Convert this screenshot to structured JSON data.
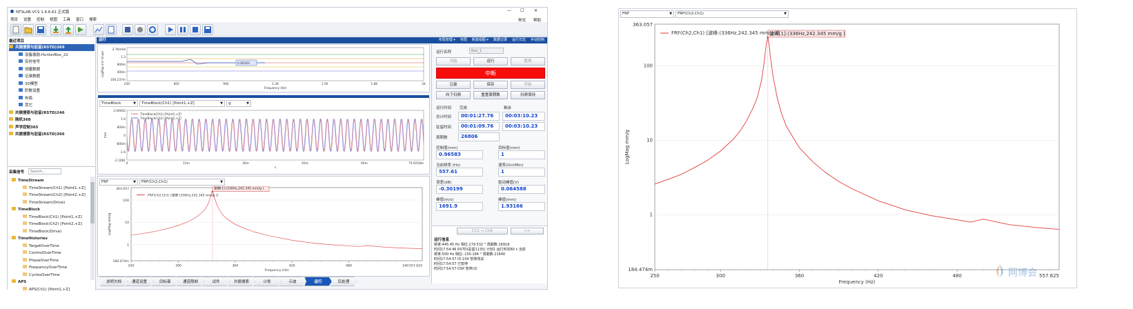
{
  "app": {
    "title": "NTSLAB.VCS 1.6.6.61 正式版",
    "menu": [
      "项目",
      "设置",
      "控制",
      "视图",
      "工具",
      "窗口",
      "搜索"
    ],
    "menu_right": [
      "样式",
      "帮助"
    ],
    "window_controls": [
      "—",
      "☐",
      "✕"
    ]
  },
  "toolbar_icons": [
    "new-file-icon",
    "open-folder-icon",
    "save-icon",
    "import-icon",
    "export-icon",
    "record-icon",
    "chart-icon",
    "document-icon",
    "stop-icon",
    "shape-icon",
    "settings-icon",
    "play-icon",
    "pause-icon",
    "stop-square-icon",
    "save-run-icon"
  ],
  "project_tree": {
    "header": "最近项目",
    "items": [
      {
        "label": "共振搜索与驻留(RSTD)369",
        "level": 0,
        "selected": true
      },
      {
        "label": "设备激励:HunterBox_22",
        "level": 1
      },
      {
        "label": "实时信号",
        "level": 1
      },
      {
        "label": "测量数据",
        "level": 1
      },
      {
        "label": "记录数据",
        "level": 1
      },
      {
        "label": "3D模型",
        "level": 1
      },
      {
        "label": "阶数设置",
        "level": 1
      },
      {
        "label": "布局",
        "level": 1
      },
      {
        "label": "其它",
        "level": 1
      },
      {
        "label": "共振搜索与驻留(RSTD)246",
        "level": 0
      },
      {
        "label": "随机368",
        "level": 0
      },
      {
        "label": "声学控制365",
        "level": 0
      },
      {
        "label": "共振搜索与驻留(RSTD)366",
        "level": 0
      }
    ]
  },
  "signal_tree": {
    "header": "采集信号",
    "search_placeholder": "Search...",
    "items": [
      {
        "label": "TimeStream",
        "level": 0,
        "group": true
      },
      {
        "label": "TimeStream(Ch1) [Point1,+Z]",
        "level": 1
      },
      {
        "label": "TimeStream(Ch2) [Point2,+Z]",
        "level": 1
      },
      {
        "label": "TimeStream(Drive)",
        "level": 1
      },
      {
        "label": "TimeBlock",
        "level": 0,
        "group": true
      },
      {
        "label": "TimeBlock(Ch1) [Point1,+Z]",
        "level": 1
      },
      {
        "label": "TimeBlock(Ch2) [Point2,+Z]",
        "level": 1
      },
      {
        "label": "TimeBlock(Drive)",
        "level": 1
      },
      {
        "label": "TimeHistories",
        "level": 0,
        "group": true
      },
      {
        "label": "TargetOverTime",
        "level": 1
      },
      {
        "label": "ControlOverTime",
        "level": 1
      },
      {
        "label": "PhaseOverTime",
        "level": 1
      },
      {
        "label": "FrequencyOverTime",
        "level": 1
      },
      {
        "label": "CyclesOverTime",
        "level": 1
      },
      {
        "label": "APS",
        "level": 0,
        "group": true
      },
      {
        "label": "APS(Ch1) [Point1,+Z]",
        "level": 1
      }
    ]
  },
  "run_panel": {
    "header": "运行",
    "header_menu": [
      "布局管理 ▾",
      "布局",
      "新建视图 ▾",
      "数据记录",
      "运行日志",
      "手动控制"
    ],
    "top_chart": {
      "ylabel": "LogMag mm (0-pe)",
      "yticks": [
        "2.7KmHz",
        "1.3",
        "800m",
        "400m",
        "100.237m"
      ],
      "xticks": [
        "250",
        "600",
        "900",
        "1.2K",
        "1.5K",
        "1.8K",
        "2K"
      ],
      "xlabel": "Frequency (Hz)",
      "marker": "0.96583"
    },
    "time_chart": {
      "select1": "TimeBlock",
      "select2": "TimeBlock(Ch1) [Point1,+Z]",
      "select3": "g",
      "legend": [
        "TimeBlock(Ch1) [Point1,+Z]",
        "TimeBlock(Ch2) [Point2,+Z]"
      ],
      "ylabel": "mm",
      "yticks": [
        "2.09402",
        "1.6",
        "800m",
        "0",
        "-800m",
        "-1.6",
        "-2.1081"
      ],
      "xticks": [
        "0",
        "15m",
        "30m",
        "45m",
        "60m",
        "79.9218m"
      ],
      "xlabel": "s"
    },
    "frf_small": {
      "select1": "FRF",
      "select2": "FRF(Ch2,Ch1)",
      "ytop": "363.057",
      "ybottom": "184.474m",
      "yticks": [
        "100",
        "10",
        "1"
      ],
      "xticks": [
        "250",
        "300",
        "360",
        "420",
        "480",
        "540",
        "557.625"
      ],
      "xlabel": "Frequency (Hz)",
      "ylabel": "LogMag mm/g",
      "legend": "FRF(Ch2,Ch1) [波峰:(336Hz,242.345 mm/g )]",
      "annotation": "波峰[1]:(336Hz,242.345 mm/g )"
    }
  },
  "control_panel": {
    "run_name_label": "运行名称",
    "run_name_placeholder": "Run_1",
    "buttons_row1": [
      "开始",
      "运行",
      "暂停"
    ],
    "stop_button": "中断",
    "buttons_row3": [
      "记录",
      "保存",
      "开始"
    ],
    "buttons_row4": [
      "向下扫频",
      "重置周期数",
      "扫频保持"
    ],
    "col_done": "完成",
    "col_remain": "剩余",
    "run_time_label": "运行时间",
    "total_time_label": "总计时间",
    "total_done": "00:01:27.76",
    "total_remain": "00:03:10.23",
    "dwell_time_label": "驻留时间",
    "dwell_done": "00:01:09.76",
    "dwell_remain": "00:03:10.23",
    "cycles_label": "周期数",
    "cycles": "26806",
    "fields": [
      {
        "label": "控制值(mm)",
        "value": "0.96583"
      },
      {
        "label": "目标值(mm)",
        "value": "1"
      },
      {
        "label": "当前频率 (Hz)",
        "value": "557.61"
      },
      {
        "label": "速率(Oct/Min)",
        "value": "1"
      },
      {
        "label": "误差(dB)",
        "value": "-0.30199"
      },
      {
        "label": "驱动峰值(V)",
        "value": "0.064588"
      },
      {
        "label": "峰值(m/s)",
        "value": "1691.9"
      },
      {
        "label": "峰值(mm)",
        "value": "1.93166"
      }
    ],
    "channel_buttons": [
      "Ch1 → Ch8",
      ">>"
    ],
    "log_header": "运行信息",
    "log": [
      "频率:445.45 Hz 相位:179.532 ° 周期数:16918",
      "时间17:54:46 RSTD(驻留1130) 计划1 运行时间60 s 当前",
      "频率:500 Hz 相位:-150.184 ° 周期数:21640",
      "时间17:54:57 ID:104 暂停测试",
      "时间17:54:57 已暂停",
      "时间17:54:57 DSP 暂停(3)"
    ]
  },
  "bottom_tabs": [
    "说明文档",
    "通道设置",
    "目标谱",
    "通道限制",
    "试件",
    "共振搜索",
    "计划",
    "示波",
    "运行",
    "后处理"
  ],
  "bottom_tab_active": 8,
  "right_panel": {
    "select1": "FRF",
    "select2": "FRF(Ch2,Ch1)",
    "ytop": "363.057",
    "ybottom": "184.474m",
    "yticks": [
      "100",
      "10",
      "1"
    ],
    "xticks": [
      "250",
      "300",
      "360",
      "420",
      "480"
    ],
    "xlast": "557.625",
    "xlabel": "Frequency (Hz)",
    "ylabel": "LogMag mm/g",
    "legend": "FRF(Ch2,Ch1) [波峰:(336Hz,242.345 mm/g )]",
    "annotation": "波峰[1]:(336Hz,242.345 mm/g )",
    "watermark": "网博会"
  },
  "chart_data": {
    "type": "line",
    "title": "",
    "xlabel": "Frequency (Hz)",
    "ylabel": "LogMag mm/g",
    "yscale": "log",
    "xlim": [
      250,
      557.625
    ],
    "ylim": [
      0.184474,
      363.057
    ],
    "series": [
      {
        "name": "FRF(Ch2,Ch1) [波峰:(336Hz,242.345 mm/g )]",
        "color": "#e03b3b",
        "x": [
          250,
          260,
          270,
          280,
          290,
          300,
          310,
          315,
          320,
          325,
          328,
          331,
          333,
          334,
          335,
          336,
          337,
          338,
          340,
          343,
          346,
          350,
          360,
          370,
          380,
          390,
          400,
          420,
          440,
          460,
          480,
          490,
          500,
          520,
          540,
          557.625
        ],
        "y": [
          2.6,
          3.0,
          3.5,
          4.3,
          5.4,
          7.2,
          10.5,
          13.5,
          18.5,
          28,
          38,
          62,
          105,
          150,
          205,
          242.345,
          190,
          130,
          72,
          38,
          24,
          15.5,
          8.0,
          5.2,
          3.7,
          2.8,
          2.25,
          1.55,
          1.18,
          0.98,
          0.86,
          0.8,
          0.88,
          0.74,
          0.68,
          0.64
        ]
      }
    ],
    "annotations": [
      "波峰[1]:(336Hz,242.345 mm/g )"
    ],
    "grid": true,
    "legend_position": "top-left"
  }
}
